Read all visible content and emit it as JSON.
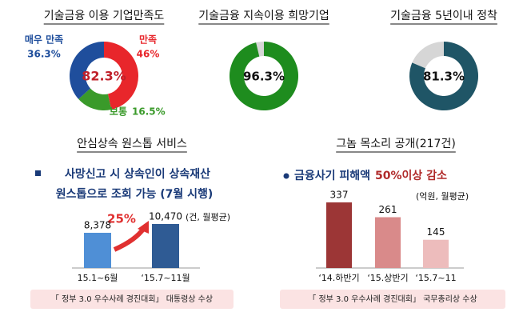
{
  "chart_data": [
    {
      "type": "donut",
      "title": "기술금융 이용 기업만족도",
      "categories": [
        "만족",
        "보통",
        "매우 만족"
      ],
      "values": [
        46,
        16.5,
        36.3
      ],
      "value_labels": [
        "46%",
        "16.5%",
        "36.3%"
      ],
      "colors": [
        "#e8262b",
        "#3a9a2a",
        "#1f4e9c"
      ],
      "center_label": "82.3%"
    },
    {
      "type": "donut",
      "title": "기술금융 지속이용 희망기업",
      "values": [
        96.3
      ],
      "value_labels": [
        "96.3%"
      ],
      "colors": [
        "#1e8c1e"
      ]
    },
    {
      "type": "donut",
      "title": "기술금융 5년이내 정착",
      "values": [
        81.3
      ],
      "value_labels": [
        "81.3%"
      ],
      "colors": [
        "#1f5566"
      ]
    },
    {
      "type": "bar",
      "title": "안심상속 원스톱 서비스",
      "subtitle": [
        "사망신고 시 상속인이 상속재산",
        "원스톱으로 조회 가능 (7월 시행)"
      ],
      "unit": "(건, 월평균)",
      "categories": [
        "15.1~6월",
        "‘15.7~11월"
      ],
      "values": [
        8378,
        10470
      ],
      "value_labels": [
        "8,378",
        "10,470"
      ],
      "colors": [
        "#4f8fd6",
        "#2f5b94"
      ],
      "annotation": "25%",
      "caption": "「 정부 3.0 우수사례 경진대회」 대통령상 수상"
    },
    {
      "type": "bar",
      "title": "그놈 목소리 공개(217건)",
      "subtitle": [
        "금융사기 피해액",
        "50%이상 감소"
      ],
      "unit": "(억원, 월평균)",
      "categories": [
        "‘14.하반기",
        "‘15.상반기",
        "‘15.7~11"
      ],
      "values": [
        337,
        261,
        145
      ],
      "colors": [
        "#9c3636",
        "#d98a8a",
        "#edbcbc"
      ],
      "caption": "「 정부 3.0 우수사례 경진대회」 국무총리상 수상"
    }
  ]
}
